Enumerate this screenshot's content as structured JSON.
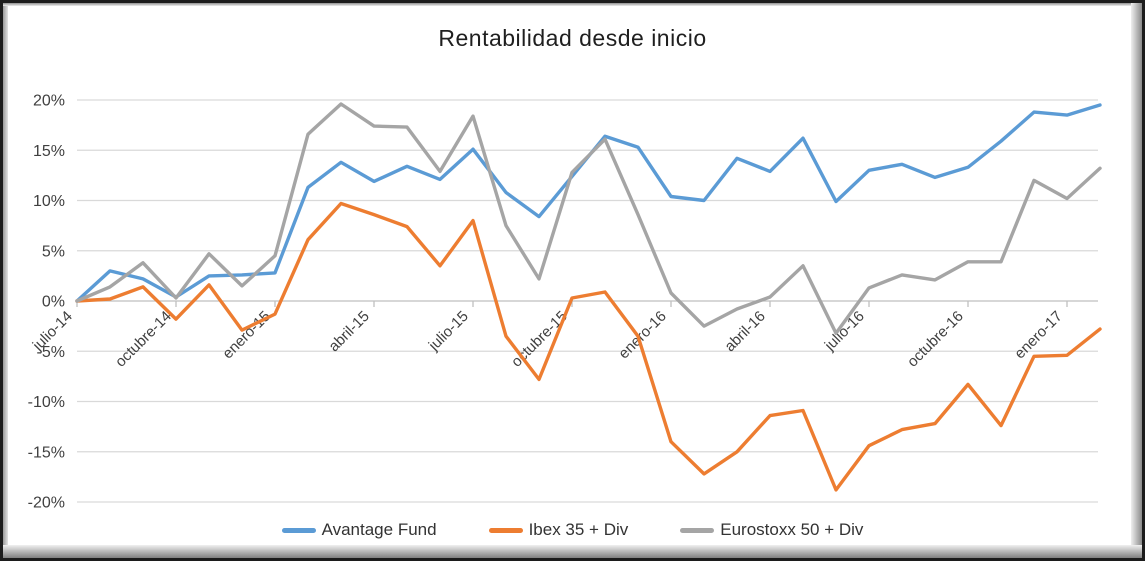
{
  "chart_data": {
    "type": "line",
    "title": "Rentabilidad desde inicio",
    "categories": [
      "julio-14",
      "agosto-14",
      "septiembre-14",
      "octubre-14",
      "noviembre-14",
      "diciembre-14",
      "enero-15",
      "febrero-15",
      "marzo-15",
      "abril-15",
      "mayo-15",
      "junio-15",
      "julio-15",
      "agosto-15",
      "septiembre-15",
      "octubre-15",
      "noviembre-15",
      "diciembre-15",
      "enero-16",
      "febrero-16",
      "marzo-16",
      "abril-16",
      "mayo-16",
      "junio-16",
      "julio-16",
      "agosto-16",
      "septiembre-16",
      "octubre-16",
      "noviembre-16",
      "diciembre-16",
      "enero-17",
      "febrero-17"
    ],
    "x_tick_labels": [
      "julio-14",
      "octubre-14",
      "enero-15",
      "abril-15",
      "julio-15",
      "octubre-15",
      "enero-16",
      "abril-16",
      "julio-16",
      "octubre-16",
      "enero-17"
    ],
    "x_tick_every": 3,
    "series": [
      {
        "name": "Avantage Fund",
        "color": "#5B9BD5",
        "values": [
          0.0,
          3.0,
          2.2,
          0.4,
          2.5,
          2.6,
          2.8,
          11.3,
          13.8,
          11.9,
          13.4,
          12.1,
          15.1,
          10.8,
          8.4,
          12.4,
          16.4,
          15.3,
          10.4,
          10.0,
          14.2,
          12.9,
          16.2,
          9.9,
          13.0,
          13.6,
          12.3,
          13.3,
          15.9,
          18.8,
          18.5,
          19.5
        ]
      },
      {
        "name": "Ibex 35 + Div",
        "color": "#ED7D31",
        "values": [
          0.0,
          0.2,
          1.4,
          -1.8,
          1.6,
          -2.9,
          -1.3,
          6.1,
          9.7,
          8.6,
          7.4,
          3.5,
          8.0,
          -3.5,
          -7.8,
          0.3,
          0.9,
          -3.5,
          -14.0,
          -17.2,
          -15.0,
          -11.4,
          -10.9,
          -18.8,
          -14.4,
          -12.8,
          -12.2,
          -8.3,
          -12.4,
          -5.5,
          -5.4,
          -2.8
        ]
      },
      {
        "name": "Eurostoxx 50 + Div",
        "color": "#A5A5A5",
        "values": [
          0.0,
          1.4,
          3.8,
          0.3,
          4.7,
          1.5,
          4.5,
          16.6,
          19.6,
          17.4,
          17.3,
          12.9,
          18.4,
          7.5,
          2.2,
          12.8,
          16.1,
          8.6,
          0.8,
          -2.5,
          -0.8,
          0.4,
          3.5,
          -3.2,
          1.3,
          2.6,
          2.1,
          3.9,
          3.9,
          12.0,
          10.2,
          13.2
        ]
      }
    ],
    "ylim": [
      -20,
      20
    ],
    "y_tick_step": 5,
    "y_tick_labels": [
      "20%",
      "15%",
      "10%",
      "5%",
      "0%",
      "-5%",
      "-10%",
      "-15%",
      "-20%"
    ],
    "grid": true,
    "legend_position": "bottom"
  },
  "styles": {
    "grid_color": "#D9D9D9",
    "axis_color": "#BFBFBF",
    "tick_label_color": "#404040",
    "title_color": "#1F1F1F",
    "background": "#FFFFFF"
  }
}
